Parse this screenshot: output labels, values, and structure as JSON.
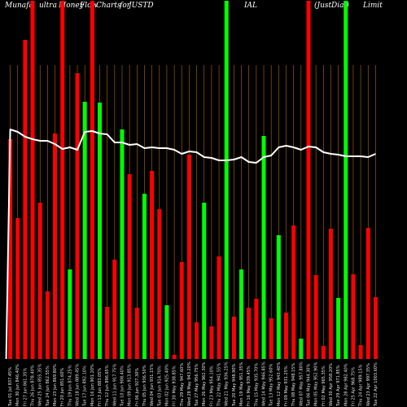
{
  "chart_data": {
    "type": "bar",
    "title_parts": [
      "Munafa",
      "ultra",
      "Money",
      "Flow",
      "Charts",
      "for",
      "JUSTD",
      "IAL",
      "(Just",
      "Dial)",
      "Limit"
    ],
    "xlabel": "",
    "ylabel": "",
    "ylim": [
      0,
      440
    ],
    "grid": true,
    "categories": [
      "Tue 01 Jul 2025",
      "Mon 30 Jun 2025",
      "Fri 27 Jun 2025",
      "Thu 26 Jun 2025",
      "Wed 25 Jun 2025",
      "Tue 24 Jun 2025",
      "Mon 23 Jun 2025",
      "Fri 20 Jun 2025",
      "Thu 19 Jun 2025",
      "Wed 18 Jun 2025",
      "Tue 17 Jun 2025",
      "Mon 16 Jun 2025",
      "Fri 13 Jun 2025",
      "Thu 12 Jun 2025",
      "Wed 11 Jun 2025",
      "Tue 10 Jun 2025",
      "Mon 09 Jun 2025",
      "Fri 06 Jun 2025",
      "Thu 05 Jun 2025",
      "Wed 04 Jun 2025",
      "Tue 03 Jun 2025",
      "Mon 02 Jun 2025",
      "Fri 30 May 2025",
      "Thu 29 May 2025",
      "Wed 28 May 2025",
      "Tue 27 May 2025",
      "Mon 26 May 2025",
      "Fri 23 May 2025",
      "Thu 22 May 2025",
      "Wed 21 May 2025",
      "Tue 20 May 2025",
      "Mon 19 May 2025",
      "Fri 16 May 2025",
      "Thu 15 May 2025",
      "Wed 14 May 2025",
      "Tue 13 May 2025",
      "Mon 12 May 2025",
      "Fri 09 May 2025",
      "Thu 08 May 2025",
      "Wed 07 May 2025",
      "Tue 06 May 2025",
      "Mon 05 May 2025",
      "Fri 02 May 2025",
      "Wed 30 Apr 2025",
      "Tue 29 Apr 2025",
      "Mon 28 Apr 2025",
      "Fri 25 Apr 2025",
      "Thu 24 Apr 2025",
      "Wed 23 Apr 2025",
      "Tue 22 Apr 2025"
    ],
    "xtick_labels": [
      "Tue 01 Jul 837.45%",
      "Mon 30 Jun 846.40%",
      "Fri 27 Jun 861.35%",
      "Thu 26 Jun 878.40%",
      "Wed 25 Jun 855.35%",
      "Tue 24 Jun 862.55%",
      "Mon 23 Jun 869.80%",
      "Fri 20 Jun 851.60%",
      "Thu 19 Jun 874.25%",
      "Wed 18 Jun 889.45%",
      "Tue 17 Jun 892.10%",
      "Mon 16 Jun 901.20%",
      "Fri 13 Jun 883.05%",
      "Thu 12 Jun 896.65%",
      "Wed 11 Jun 917.75%",
      "Tue 10 Jun 908.40%",
      "Mon 09 Jun 913.85%",
      "Fri 06 Jun 927.30%",
      "Thu 05 Jun 936.50%",
      "Wed 04 Jun 931.15%",
      "Tue 03 Jun 914.70%",
      "Mon 02 Jun 925.40%",
      "Fri 30 May 938.85%",
      "Thu 29 May 947.60%",
      "Wed 28 May 943.20%",
      "Tue 27 May 956.75%",
      "Mon 26 May 962.30%",
      "Fri 23 May 954.10%",
      "Thu 22 May 941.55%",
      "Wed 21 May 936.25%",
      "Tue 20 May 948.90%",
      "Mon 19 May 951.35%",
      "Fri 16 May 939.45%",
      "Thu 15 May 935.70%",
      "Wed 14 May 946.85%",
      "Tue 13 May 952.60%",
      "Mon 12 May 943.40%",
      "Fri 09 May 931.25%",
      "Thu 08 May 948.15%",
      "Wed 07 May 957.80%",
      "Tue 06 May 944.30%",
      "Mon 05 May 952.90%",
      "Fri 02 May 965.35%",
      "Wed 30 Apr 958.20%",
      "Tue 29 Apr 971.85%",
      "Mon 28 Apr 982.40%",
      "Fri 25 Apr 968.75%",
      "Thu 24 Apr 989.15%",
      "Wed 23 Apr 997.35%",
      "Tue 22 Apr 1003.60%"
    ],
    "series": [
      {
        "values": [
          270,
          173,
          392,
          440,
          192,
          83,
          277,
          440,
          110,
          351,
          316,
          440,
          315,
          64,
          122,
          282,
          227,
          63,
          203,
          231,
          184,
          66,
          5,
          119,
          251,
          45,
          192,
          40,
          126,
          440,
          52,
          110,
          63,
          74,
          274,
          50,
          152,
          57,
          164,
          25,
          440,
          103,
          16,
          160,
          75,
          440,
          104,
          17,
          161,
          76
        ],
        "colors": [
          "r",
          "r",
          "r",
          "r",
          "r",
          "r",
          "r",
          "r",
          "g",
          "r",
          "g",
          "r",
          "g",
          "r",
          "r",
          "g",
          "r",
          "r",
          "g",
          "r",
          "r",
          "g",
          "r",
          "r",
          "r",
          "r",
          "g",
          "r",
          "r",
          "g",
          "r",
          "g",
          "r",
          "r",
          "g",
          "r",
          "g",
          "r",
          "r",
          "g",
          "r",
          "r",
          "r",
          "r",
          "g",
          "g",
          "r",
          "r",
          "r",
          "r"
        ]
      }
    ],
    "line_series": {
      "values": [
        282,
        279,
        273,
        270,
        268,
        268,
        264,
        258,
        260,
        257,
        279,
        280,
        277,
        276,
        266,
        266,
        263,
        264,
        259,
        260,
        259,
        259,
        257,
        252,
        255,
        254,
        248,
        247,
        244,
        244,
        245,
        248,
        242,
        241,
        248,
        250,
        260,
        262,
        260,
        257,
        261,
        260,
        254,
        252,
        251,
        249,
        249,
        249,
        248,
        252
      ]
    },
    "colors": {
      "up": "#00ff00",
      "down": "#ff0000",
      "line": "#ffffff",
      "grid": "#b86a00",
      "background": "#000000"
    }
  }
}
